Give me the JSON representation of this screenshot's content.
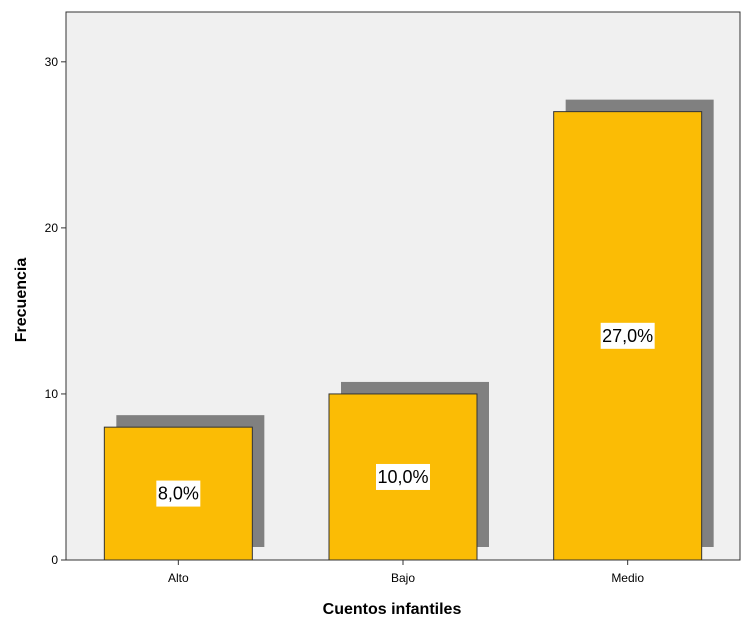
{
  "chart_data": {
    "type": "bar",
    "categories": [
      "Alto",
      "Bajo",
      "Medio"
    ],
    "values": [
      8,
      10,
      27
    ],
    "data_labels": [
      "8,0%",
      "10,0%",
      "27,0%"
    ],
    "xlabel": "Cuentos infantiles",
    "ylabel": "Frecuencia",
    "ylim": [
      0,
      33
    ],
    "yticks": [
      0,
      10,
      20,
      30
    ],
    "grid": false,
    "bar_shadow": true,
    "colors": {
      "bar": "#FBBC05",
      "bar_stroke": "#333333",
      "shadow": "#808080",
      "plot_bg": "#F0F0F0"
    }
  }
}
